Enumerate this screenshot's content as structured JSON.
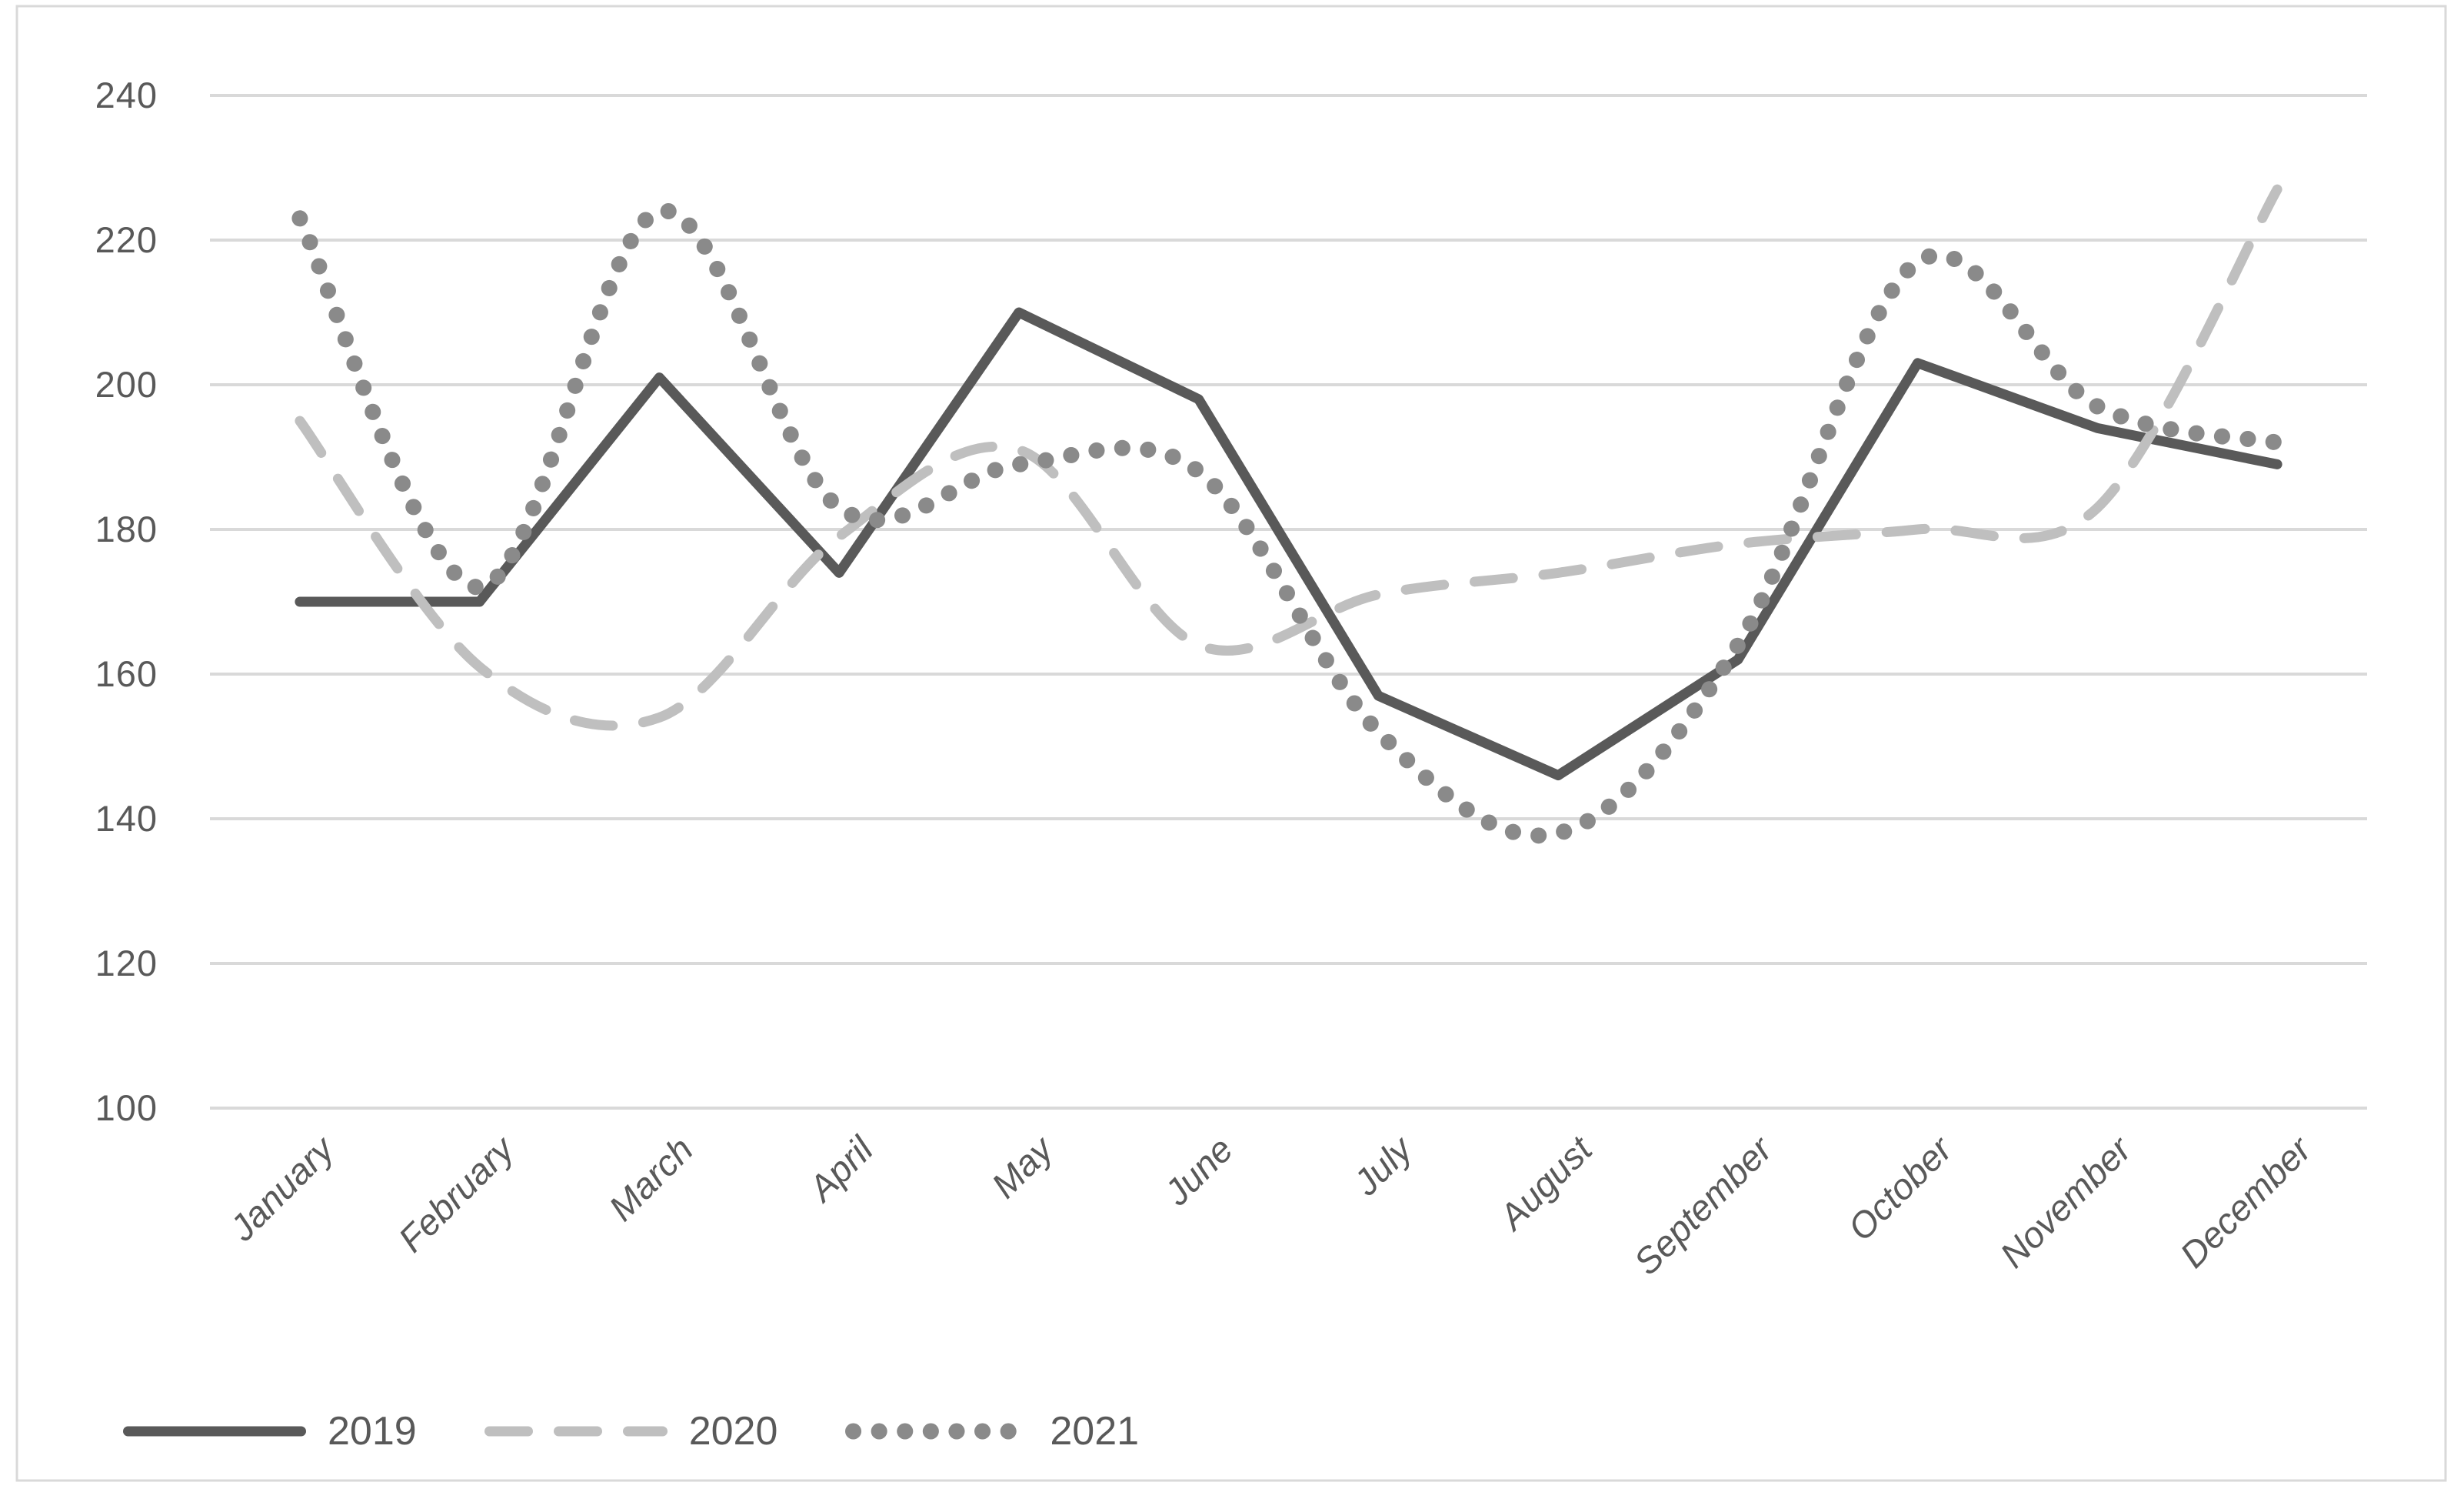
{
  "chart_data": {
    "type": "line",
    "title": "",
    "xlabel": "",
    "ylabel": "",
    "categories": [
      "January",
      "February",
      "March",
      "April",
      "May",
      "June",
      "July",
      "August",
      "September",
      "October",
      "November",
      "December"
    ],
    "series": [
      {
        "name": "2019",
        "style": "solid",
        "smooth": false,
        "color": "#595959",
        "values": [
          170,
          170,
          201,
          174,
          210,
          198,
          157,
          146,
          162,
          203,
          194,
          189
        ]
      },
      {
        "name": "2020",
        "style": "dashed",
        "smooth": true,
        "color": "#bfbfbf",
        "values": [
          195,
          161,
          154,
          179,
          191,
          164,
          171,
          174,
          178,
          180,
          183,
          227
        ]
      },
      {
        "name": "2021",
        "style": "dotted",
        "smooth": true,
        "color": "#8a8a8a",
        "values": [
          223,
          172,
          224,
          183,
          189,
          188,
          152,
          138,
          164,
          217,
          197,
          192
        ]
      }
    ],
    "ylim": [
      100,
      240
    ],
    "y_ticks": [
      240,
      220,
      200,
      180,
      160,
      140,
      120,
      100
    ],
    "grid": true,
    "legend_position": "bottom-left"
  },
  "colors": {
    "background": "#ffffff",
    "gridline": "#d9d9d9",
    "chart_border": "#d9d9d9",
    "axis_text": "#595959"
  }
}
